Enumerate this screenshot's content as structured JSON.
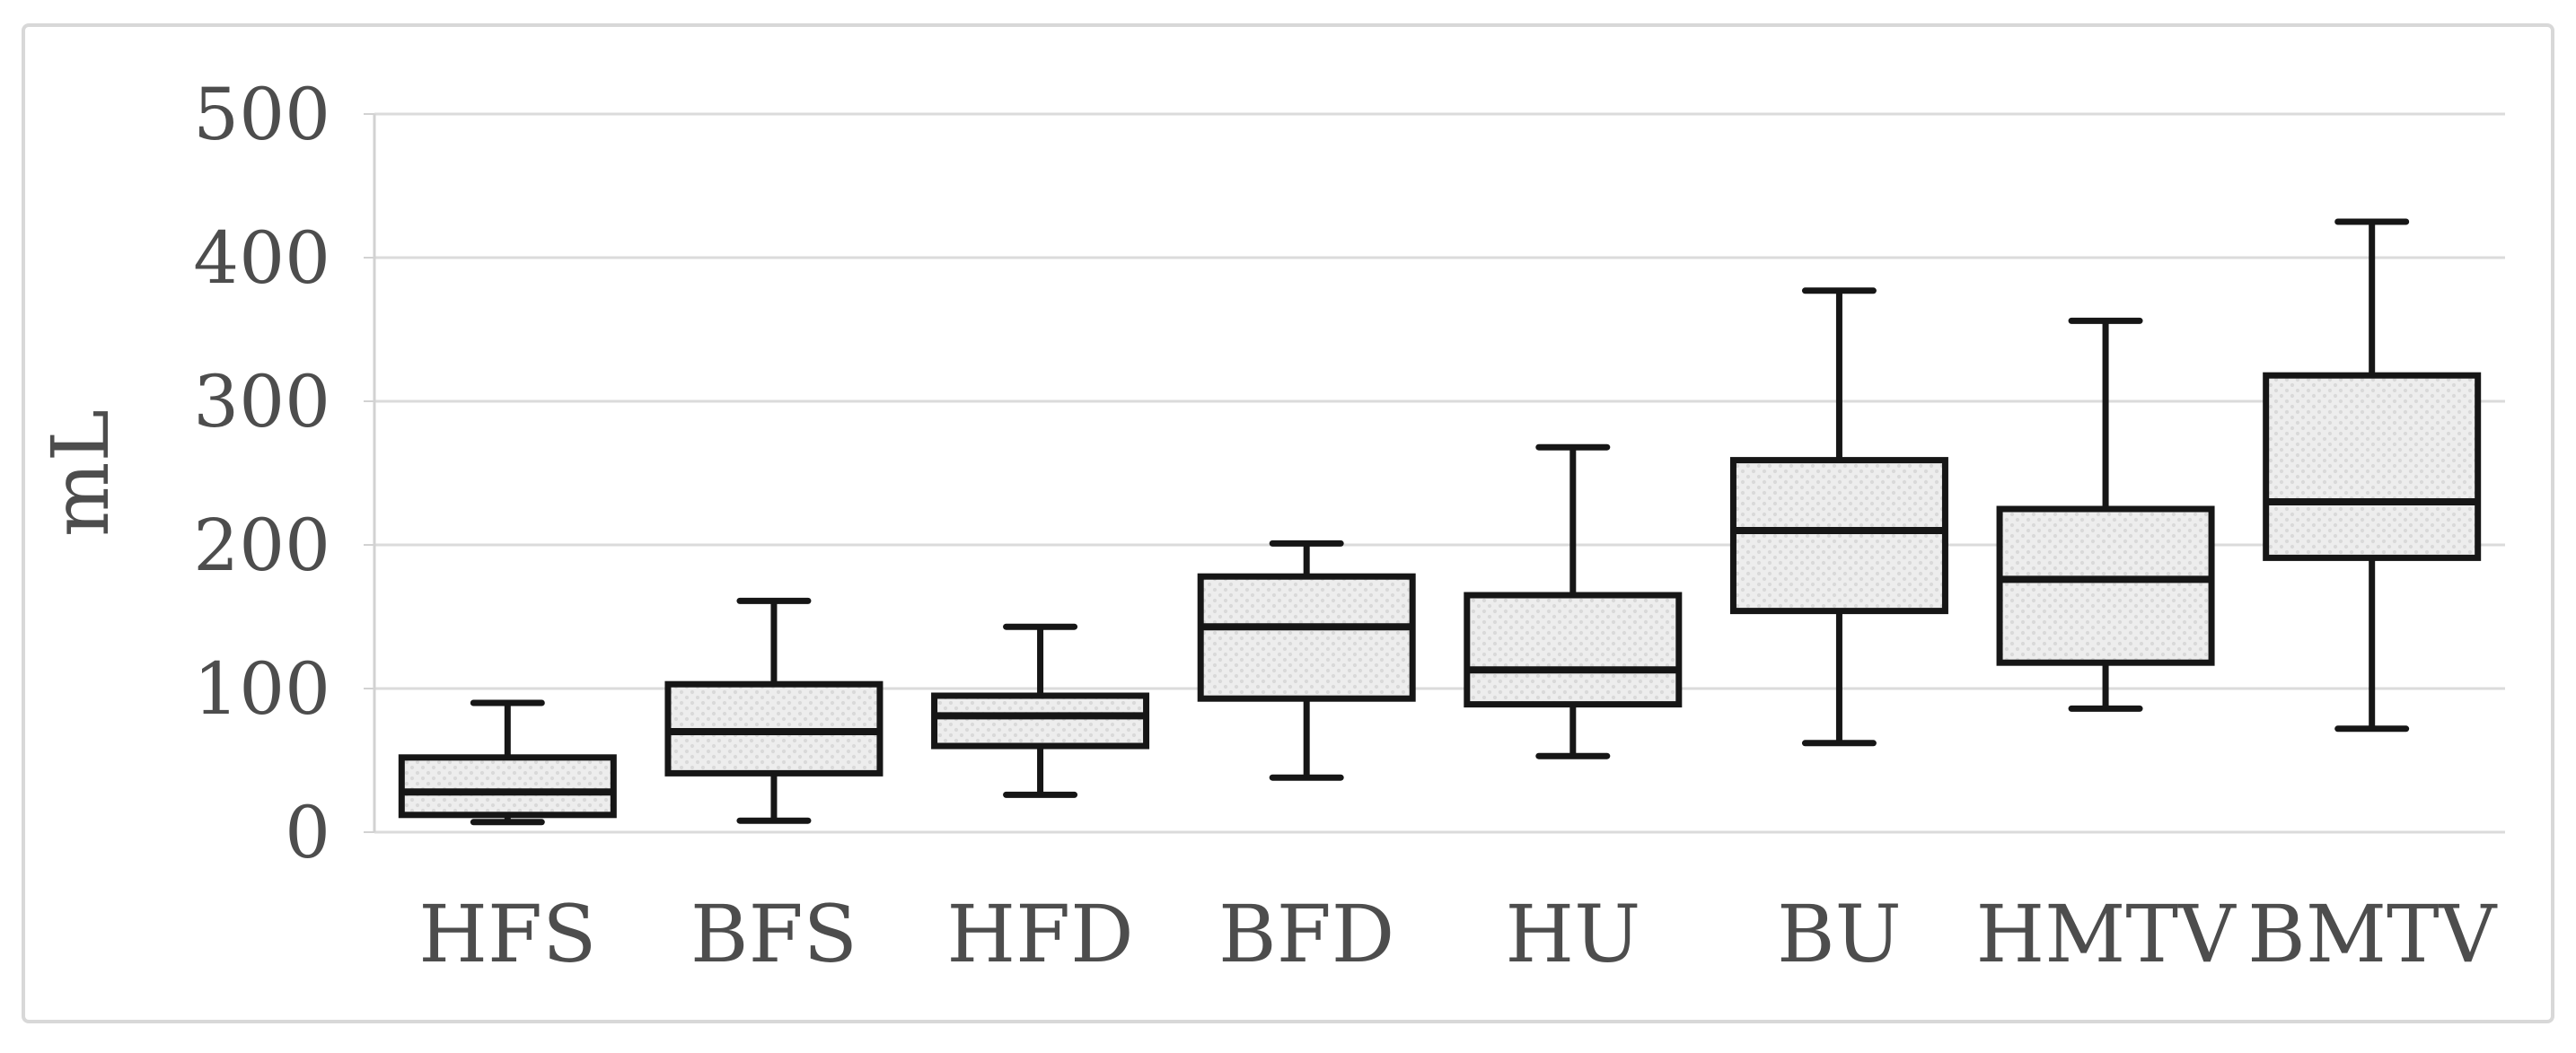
{
  "figure": {
    "background": "#ffffff",
    "border_color": "#d8d8d8"
  },
  "chart_data": {
    "type": "boxplot",
    "title": "",
    "xlabel": "",
    "ylabel": "mL",
    "ylim": [
      0,
      500
    ],
    "yticks": [
      0,
      100,
      200,
      300,
      400,
      500
    ],
    "grid": "horizontal",
    "legend": false,
    "categories": [
      "HFS",
      "BFS",
      "HFD",
      "BFD",
      "HU",
      "BU",
      "HMTV",
      "BMTV"
    ],
    "series": [
      {
        "name": "HFS",
        "min": 7,
        "q1": 12,
        "median": 28,
        "q3": 52,
        "max": 90
      },
      {
        "name": "BFS",
        "min": 8,
        "q1": 41,
        "median": 70,
        "q3": 103,
        "max": 161
      },
      {
        "name": "HFD",
        "min": 26,
        "q1": 60,
        "median": 81,
        "q3": 95,
        "max": 143
      },
      {
        "name": "BFD",
        "min": 38,
        "q1": 93,
        "median": 143,
        "q3": 178,
        "max": 201
      },
      {
        "name": "HU",
        "min": 53,
        "q1": 89,
        "median": 113,
        "q3": 165,
        "max": 268
      },
      {
        "name": "BU",
        "min": 62,
        "q1": 154,
        "median": 210,
        "q3": 259,
        "max": 377
      },
      {
        "name": "HMTV",
        "min": 86,
        "q1": 118,
        "median": 176,
        "q3": 225,
        "max": 356
      },
      {
        "name": "BMTV",
        "min": 72,
        "q1": 191,
        "median": 230,
        "q3": 318,
        "max": 425
      }
    ]
  },
  "colors": {
    "box_fill": "#ededed",
    "box_fill_dot": "#d9d9d9",
    "box_stroke": "#161616",
    "gridline": "#dbdbdb",
    "axis_line": "#d2d2d2",
    "axis_text": "#4d4d4d",
    "figure_border": "#d8d8d8",
    "background": "#ffffff"
  }
}
